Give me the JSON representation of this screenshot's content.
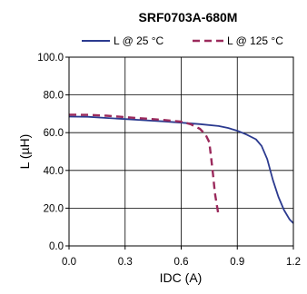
{
  "chart_data": {
    "type": "line",
    "title": "SRF0703A-680M",
    "xlabel": "IDC (A)",
    "ylabel": "L (µH)",
    "xlim": [
      0,
      1.2
    ],
    "ylim": [
      0,
      100
    ],
    "x_ticks": [
      "0.0",
      "0.3",
      "0.6",
      "0.9",
      "1.2"
    ],
    "y_ticks": [
      "0.0",
      "20.0",
      "40.0",
      "60.0",
      "80.0",
      "100.0"
    ],
    "grid": true,
    "legend_position": "top",
    "series": [
      {
        "name": "L @ 25 °C",
        "color": "#2b3a8f",
        "style": "solid",
        "points": [
          [
            0,
            68.5
          ],
          [
            0.1,
            68.4
          ],
          [
            0.2,
            67.8
          ],
          [
            0.3,
            67.2
          ],
          [
            0.4,
            66.6
          ],
          [
            0.5,
            66
          ],
          [
            0.6,
            65.3
          ],
          [
            0.7,
            64.5
          ],
          [
            0.8,
            63.5
          ],
          [
            0.85,
            62.5
          ],
          [
            0.9,
            61
          ],
          [
            0.95,
            59
          ],
          [
            1.0,
            56.5
          ],
          [
            1.03,
            53
          ],
          [
            1.06,
            46
          ],
          [
            1.09,
            35
          ],
          [
            1.12,
            26
          ],
          [
            1.15,
            19
          ],
          [
            1.18,
            14
          ],
          [
            1.2,
            12
          ]
        ]
      },
      {
        "name": "L @ 125 °C",
        "color": "#9b2a5c",
        "style": "dashed",
        "points": [
          [
            0,
            69.5
          ],
          [
            0.1,
            69.4
          ],
          [
            0.2,
            69
          ],
          [
            0.3,
            68.2
          ],
          [
            0.4,
            67.5
          ],
          [
            0.5,
            66.8
          ],
          [
            0.6,
            65.8
          ],
          [
            0.65,
            64.5
          ],
          [
            0.7,
            62
          ],
          [
            0.73,
            59
          ],
          [
            0.75,
            55
          ],
          [
            0.76,
            47
          ],
          [
            0.77,
            38
          ],
          [
            0.78,
            28
          ],
          [
            0.79,
            22
          ],
          [
            0.8,
            16
          ]
        ]
      }
    ]
  }
}
